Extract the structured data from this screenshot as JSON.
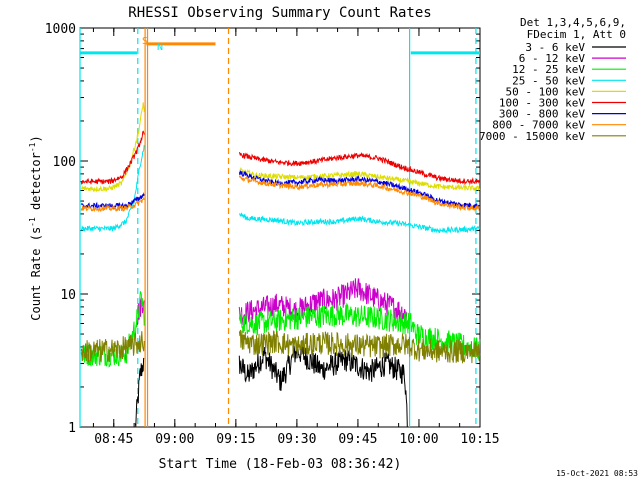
{
  "chart_data": {
    "type": "line",
    "title": "RHESSI Observing Summary Count Rates",
    "xlabel": "Start Time (18-Feb-03 08:36:42)",
    "ylabel_main": "Count Rate (s",
    "ylabel_sup1": "-1",
    "ylabel_mid": " detector",
    "ylabel_sup2": "-1",
    "ylabel_end": ")",
    "yscale": "log",
    "ylim": [
      1,
      1000
    ],
    "xlim": [
      516.7,
      615
    ],
    "x_ticks": [
      {
        "v": 525,
        "label": "08:45"
      },
      {
        "v": 540,
        "label": "09:00"
      },
      {
        "v": 555,
        "label": "09:15"
      },
      {
        "v": 570,
        "label": "09:30"
      },
      {
        "v": 585,
        "label": "09:45"
      },
      {
        "v": 600,
        "label": "10:00"
      },
      {
        "v": 615,
        "label": "10:15"
      }
    ],
    "y_ticks": [
      {
        "v": 1,
        "label": "1"
      },
      {
        "v": 10,
        "label": "10"
      },
      {
        "v": 100,
        "label": "100"
      },
      {
        "v": 1000,
        "label": "1000"
      }
    ],
    "legend": {
      "header1": "Det 1,3,4,5,6,9,",
      "header2": "FDecim 1, Att 0",
      "placement": "right"
    },
    "markers": {
      "s": "S",
      "n": "N"
    },
    "timestamp": "15-Oct-2021 08:53",
    "gaps": [
      [
        532.5,
        555
      ]
    ],
    "series": [
      {
        "name": "3 - 6 keV",
        "color": "#000000",
        "points": [
          [
            530.3,
            1.0
          ],
          [
            531.5,
            2.5
          ],
          [
            532.2,
            3.0
          ],
          [
            532.5,
            2.8
          ],
          [
            555.8,
            3.0
          ],
          [
            558,
            2.4
          ],
          [
            562,
            3.5
          ],
          [
            566,
            2.2
          ],
          [
            570,
            3.8
          ],
          [
            576,
            2.7
          ],
          [
            582,
            3.2
          ],
          [
            588,
            2.6
          ],
          [
            592,
            3.0
          ],
          [
            596.5,
            2.5
          ],
          [
            597.3,
            1.0
          ]
        ]
      },
      {
        "name": "6 - 12 keV",
        "color": "#cc00cc",
        "points": [
          [
            530.5,
            6.5
          ],
          [
            531.5,
            8.0
          ],
          [
            532.2,
            9.0
          ],
          [
            532.5,
            8.0
          ],
          [
            555.8,
            7.0
          ],
          [
            560,
            7.6
          ],
          [
            565,
            8.3
          ],
          [
            570,
            7.5
          ],
          [
            575,
            8.8
          ],
          [
            580,
            9.2
          ],
          [
            585,
            11.0
          ],
          [
            590,
            9.0
          ],
          [
            595,
            7.6
          ],
          [
            597,
            7.0
          ]
        ]
      },
      {
        "name": "12 - 25 keV",
        "color": "#00ee00",
        "points": [
          [
            517,
            3.5
          ],
          [
            528,
            3.5
          ],
          [
            530.5,
            6.0
          ],
          [
            531.8,
            9.5
          ],
          [
            532.5,
            7.0
          ],
          [
            555.8,
            6.2
          ],
          [
            560,
            6.0
          ],
          [
            570,
            6.6
          ],
          [
            580,
            7.0
          ],
          [
            590,
            6.6
          ],
          [
            598,
            6.0
          ],
          [
            599.5,
            5.0
          ],
          [
            615,
            3.8
          ]
        ]
      },
      {
        "name": "25 - 50 keV",
        "color": "#00e5ee",
        "points": [
          [
            517,
            31
          ],
          [
            525,
            31
          ],
          [
            528,
            35
          ],
          [
            530,
            50
          ],
          [
            531.5,
            95
          ],
          [
            532.5,
            130
          ],
          [
            555.8,
            40
          ],
          [
            558,
            37
          ],
          [
            565,
            36
          ],
          [
            570,
            34
          ],
          [
            575,
            35
          ],
          [
            580,
            35
          ],
          [
            585,
            37
          ],
          [
            590,
            35
          ],
          [
            595,
            34
          ],
          [
            600,
            32
          ],
          [
            605,
            30
          ],
          [
            615,
            31
          ]
        ]
      },
      {
        "name": "50 - 100 keV",
        "color": "#dddd00",
        "points": [
          [
            517,
            62
          ],
          [
            524,
            62
          ],
          [
            527,
            68
          ],
          [
            529,
            95
          ],
          [
            531,
            160
          ],
          [
            532.3,
            280
          ],
          [
            532.5,
            220
          ],
          [
            555.8,
            85
          ],
          [
            560,
            78
          ],
          [
            570,
            75
          ],
          [
            580,
            78
          ],
          [
            585,
            80
          ],
          [
            590,
            76
          ],
          [
            595,
            72
          ],
          [
            600,
            68
          ],
          [
            605,
            64
          ],
          [
            610,
            63
          ],
          [
            615,
            62
          ]
        ]
      },
      {
        "name": "100 - 300 keV",
        "color": "#ee0000",
        "points": [
          [
            517,
            70
          ],
          [
            524,
            70
          ],
          [
            527,
            76
          ],
          [
            529,
            95
          ],
          [
            531,
            125
          ],
          [
            532.3,
            165
          ],
          [
            532.5,
            150
          ],
          [
            555.8,
            112
          ],
          [
            560,
            104
          ],
          [
            565,
            98
          ],
          [
            570,
            96
          ],
          [
            575,
            100
          ],
          [
            580,
            106
          ],
          [
            585,
            110
          ],
          [
            590,
            105
          ],
          [
            595,
            92
          ],
          [
            600,
            82
          ],
          [
            605,
            74
          ],
          [
            610,
            71
          ],
          [
            615,
            70
          ]
        ]
      },
      {
        "name": "300 - 800 keV",
        "color": "#0000dd",
        "points": [
          [
            517,
            46
          ],
          [
            528,
            46
          ],
          [
            531,
            52
          ],
          [
            532.5,
            56
          ],
          [
            555.8,
            82
          ],
          [
            560,
            74
          ],
          [
            565,
            68
          ],
          [
            570,
            69
          ],
          [
            575,
            72
          ],
          [
            580,
            71
          ],
          [
            585,
            73
          ],
          [
            590,
            70
          ],
          [
            595,
            64
          ],
          [
            600,
            58
          ],
          [
            605,
            50
          ],
          [
            610,
            47
          ],
          [
            615,
            46
          ]
        ]
      },
      {
        "name": "800 - 7000 keV",
        "color": "#ff8800",
        "points": [
          [
            517,
            44
          ],
          [
            528,
            44
          ],
          [
            531,
            48
          ],
          [
            532.5,
            52
          ],
          [
            555.8,
            75
          ],
          [
            560,
            70
          ],
          [
            565,
            66
          ],
          [
            570,
            64
          ],
          [
            575,
            66
          ],
          [
            580,
            67
          ],
          [
            585,
            68
          ],
          [
            590,
            65
          ],
          [
            595,
            60
          ],
          [
            600,
            55
          ],
          [
            605,
            48
          ],
          [
            610,
            45
          ],
          [
            615,
            44
          ]
        ]
      },
      {
        "name": "7000 - 15000 keV",
        "color": "#808000",
        "points": [
          [
            517,
            3.7
          ],
          [
            525,
            3.8
          ],
          [
            529,
            4.0
          ],
          [
            532.5,
            4.5
          ],
          [
            555.8,
            4.5
          ],
          [
            560,
            4.2
          ],
          [
            565,
            4.4
          ],
          [
            570,
            4.0
          ],
          [
            575,
            4.3
          ],
          [
            580,
            4.2
          ],
          [
            585,
            4.1
          ],
          [
            590,
            4.0
          ],
          [
            595,
            4.2
          ],
          [
            598,
            4.1
          ],
          [
            600,
            3.8
          ],
          [
            605,
            3.7
          ],
          [
            615,
            3.7
          ]
        ]
      }
    ],
    "attenuator_segments": [
      {
        "color": "#00e5ee",
        "x0": 516.7,
        "x1": 530.7,
        "y": 650
      },
      {
        "color": "#ff8800",
        "x0": 533.0,
        "x1": 550.0,
        "y": 760
      },
      {
        "color": "#00e5ee",
        "x0": 598.0,
        "x1": 615.0,
        "y": 650
      }
    ],
    "vlines": [
      {
        "x": 516.7,
        "color": "#00e5ee",
        "style": "solid"
      },
      {
        "x": 530.9,
        "color": "#00e5ee",
        "style": "dash"
      },
      {
        "x": 532.7,
        "color": "#ff8800",
        "style": "solid"
      },
      {
        "x": 533.3,
        "color": "#ff8800",
        "style": "solid"
      },
      {
        "x": 553.2,
        "color": "#ff8800",
        "style": "dash"
      },
      {
        "x": 597.7,
        "color": "#00e5ee",
        "style": "solid"
      },
      {
        "x": 614.0,
        "color": "#00e5ee",
        "style": "dash"
      }
    ]
  }
}
